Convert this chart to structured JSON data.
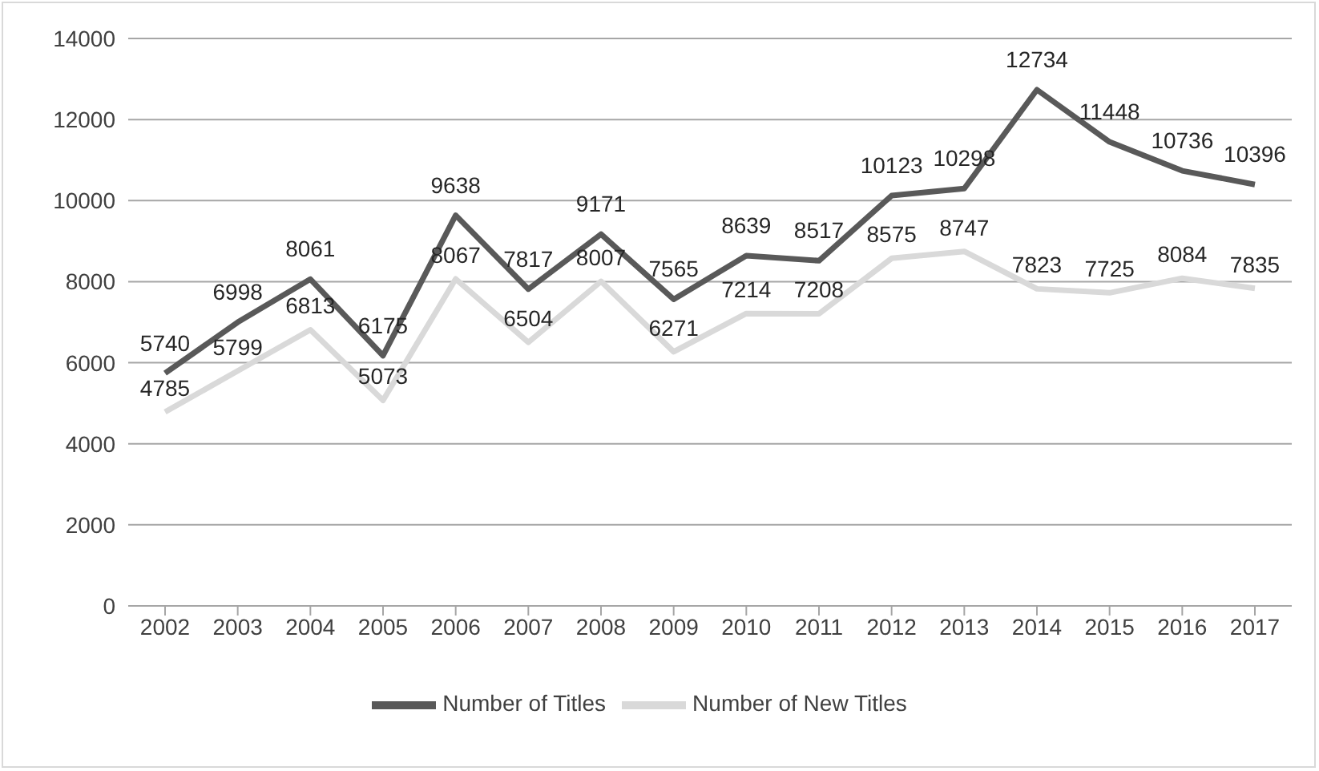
{
  "chart_data": {
    "type": "line",
    "categories": [
      "2002",
      "2003",
      "2004",
      "2005",
      "2006",
      "2007",
      "2008",
      "2009",
      "2010",
      "2011",
      "2012",
      "2013",
      "2014",
      "2015",
      "2016",
      "2017"
    ],
    "series": [
      {
        "name": "Number of Titles",
        "color": "#595959",
        "values": [
          5740,
          6998,
          8061,
          6175,
          9638,
          7817,
          9171,
          7565,
          8639,
          8517,
          10123,
          10298,
          12734,
          11448,
          10736,
          10396
        ]
      },
      {
        "name": "Number of New Titles",
        "color": "#d9d9d9",
        "values": [
          4785,
          5799,
          6813,
          5073,
          8067,
          6504,
          8007,
          6271,
          7214,
          7208,
          8575,
          8747,
          7823,
          7725,
          8084,
          7835
        ]
      }
    ],
    "ylim": [
      0,
      14000
    ],
    "yticks": [
      0,
      2000,
      4000,
      6000,
      8000,
      10000,
      12000,
      14000
    ],
    "grid": "y",
    "legend": "bottom",
    "marker": "none",
    "line_style": "solid",
    "data_labels": true
  }
}
